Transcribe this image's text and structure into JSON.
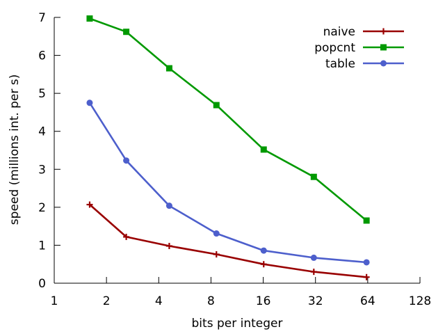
{
  "chart_data": {
    "type": "line",
    "xlabel": "bits per integer",
    "ylabel": "speed (millions int. per s)",
    "xscale": "log2",
    "xlim": [
      1,
      128
    ],
    "ylim": [
      0,
      7
    ],
    "x_ticks": [
      1,
      2,
      4,
      8,
      16,
      32,
      64,
      128
    ],
    "y_ticks": [
      0,
      1,
      2,
      3,
      4,
      5,
      6,
      7
    ],
    "grid": false,
    "legend_position": "top-right",
    "series": [
      {
        "name": "naive",
        "color": "#990000",
        "marker": "plus",
        "x": [
          1.6,
          2.6,
          4.6,
          8.6,
          16.1,
          31.3,
          63
        ],
        "y": [
          2.07,
          1.22,
          0.98,
          0.76,
          0.5,
          0.3,
          0.16
        ]
      },
      {
        "name": "popcnt",
        "color": "#009900",
        "marker": "square",
        "x": [
          1.6,
          2.6,
          4.6,
          8.6,
          16.1,
          31.3,
          63
        ],
        "y": [
          6.97,
          6.62,
          5.66,
          4.69,
          3.52,
          2.8,
          1.65
        ]
      },
      {
        "name": "table",
        "color": "#4d5fcc",
        "marker": "circle",
        "x": [
          1.6,
          2.6,
          4.6,
          8.6,
          16.1,
          31.3,
          63
        ],
        "y": [
          4.75,
          3.23,
          2.04,
          1.31,
          0.86,
          0.67,
          0.55
        ]
      }
    ]
  }
}
